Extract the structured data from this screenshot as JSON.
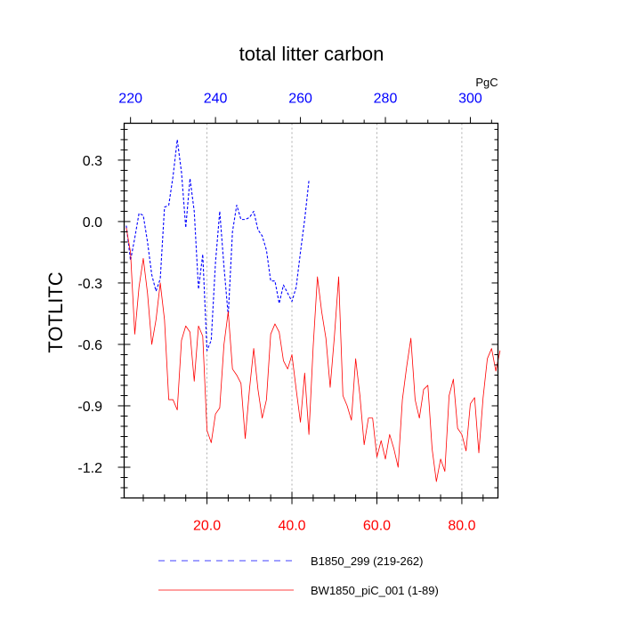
{
  "chart_data": {
    "type": "line",
    "title": "total litter carbon",
    "ylabel": "TOTLITC",
    "bottom_axis": {
      "range": [
        0.5,
        88.5
      ],
      "ticks": [
        "20.0",
        "40.0",
        "60.0",
        "80.0"
      ],
      "tick_values": [
        20,
        40,
        60,
        80
      ],
      "color": "#ff0000"
    },
    "top_axis": {
      "unit": "PgC",
      "range": [
        218.5,
        306.5
      ],
      "ticks": [
        "220",
        "240",
        "260",
        "280",
        "300"
      ],
      "tick_values": [
        220,
        240,
        260,
        280,
        300
      ],
      "color": "#0000ff"
    },
    "y_axis": {
      "range": [
        -1.35,
        0.48
      ],
      "ticks": [
        "0.3",
        "0.0",
        "-0.3",
        "-0.6",
        "-0.9",
        "-1.2"
      ],
      "tick_values": [
        0.3,
        0.0,
        -0.3,
        -0.6,
        -0.9,
        -1.2
      ]
    },
    "grid": "vertical dotted at bottom-axis ticks",
    "series": [
      {
        "name": "B1850_299 (219-262)",
        "color": "#0000ff",
        "style": "dashed",
        "axis": "top",
        "x": [
          219,
          220,
          221,
          222,
          223,
          224,
          225,
          226,
          227,
          228,
          229,
          230,
          231,
          232,
          233,
          234,
          235,
          236,
          237,
          238,
          239,
          240,
          241,
          242,
          243,
          244,
          245,
          246,
          247,
          248,
          249,
          250,
          251,
          252,
          253,
          254,
          255,
          256,
          257,
          258,
          259,
          260,
          261,
          262
        ],
        "values": [
          -0.02,
          -0.19,
          -0.08,
          0.04,
          0.03,
          -0.1,
          -0.26,
          -0.34,
          -0.28,
          0.07,
          0.08,
          0.22,
          0.4,
          0.24,
          -0.03,
          0.21,
          0.05,
          -0.33,
          -0.16,
          -0.63,
          -0.58,
          -0.2,
          0.05,
          -0.22,
          -0.46,
          -0.05,
          0.08,
          0.01,
          0.01,
          0.02,
          0.05,
          -0.04,
          -0.07,
          -0.14,
          -0.29,
          -0.29,
          -0.4,
          -0.31,
          -0.35,
          -0.39,
          -0.32,
          -0.15,
          0.01,
          0.2
        ]
      },
      {
        "name": "BW1850_piC_001 (1-89)",
        "color": "#ff0000",
        "style": "solid",
        "axis": "bottom",
        "x": [
          1,
          2,
          3,
          4,
          5,
          6,
          7,
          8,
          9,
          10,
          11,
          12,
          13,
          14,
          15,
          16,
          17,
          18,
          19,
          20,
          21,
          22,
          23,
          24,
          25,
          26,
          27,
          28,
          29,
          30,
          31,
          32,
          33,
          34,
          35,
          36,
          37,
          38,
          39,
          40,
          41,
          42,
          43,
          44,
          45,
          46,
          47,
          48,
          49,
          50,
          51,
          52,
          53,
          54,
          55,
          56,
          57,
          58,
          59,
          60,
          61,
          62,
          63,
          64,
          65,
          66,
          67,
          68,
          69,
          70,
          71,
          72,
          73,
          74,
          75,
          76,
          77,
          78,
          79,
          80,
          81,
          82,
          83,
          84,
          85,
          86,
          87,
          88,
          89
        ],
        "values": [
          -0.03,
          -0.15,
          -0.55,
          -0.32,
          -0.18,
          -0.35,
          -0.6,
          -0.48,
          -0.3,
          -0.48,
          -0.87,
          -0.87,
          -0.92,
          -0.58,
          -0.51,
          -0.54,
          -0.78,
          -0.51,
          -0.56,
          -1.02,
          -1.08,
          -0.94,
          -0.91,
          -0.6,
          -0.44,
          -0.72,
          -0.75,
          -0.79,
          -1.06,
          -0.82,
          -0.62,
          -0.82,
          -0.96,
          -0.87,
          -0.55,
          -0.5,
          -0.54,
          -0.68,
          -0.72,
          -0.65,
          -0.82,
          -0.98,
          -0.74,
          -1.04,
          -0.61,
          -0.27,
          -0.44,
          -0.57,
          -0.81,
          -0.56,
          -0.27,
          -0.85,
          -0.9,
          -0.97,
          -0.67,
          -0.85,
          -1.09,
          -0.96,
          -0.96,
          -1.15,
          -1.07,
          -1.16,
          -1.04,
          -1.11,
          -1.2,
          -0.87,
          -0.71,
          -0.57,
          -0.87,
          -0.96,
          -0.82,
          -0.8,
          -1.11,
          -1.27,
          -1.16,
          -1.22,
          -0.85,
          -0.77,
          -1.01,
          -1.04,
          -1.12,
          -0.89,
          -0.86,
          -1.13,
          -0.86,
          -0.67,
          -0.62,
          -0.73,
          -0.63
        ]
      }
    ],
    "legend": {
      "placement": "bottom",
      "entries": [
        "B1850_299 (219-262)",
        "BW1850_piC_001 (1-89)"
      ]
    }
  }
}
